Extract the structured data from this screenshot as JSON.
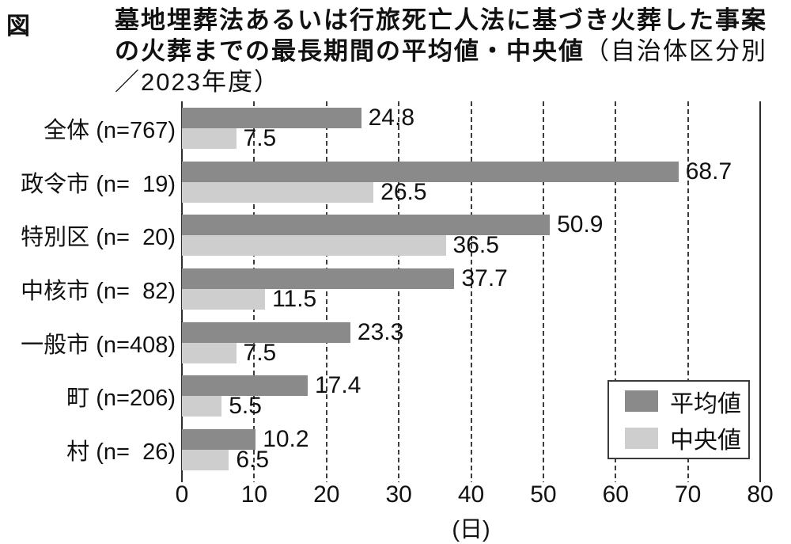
{
  "figure_label": "図",
  "title": {
    "main": "墓地埋葬法あるいは行旅死亡人法に基づき火葬した事案の火葬までの最長期間の平均値・中央値",
    "paren": "（自治体区分別／2023年度）"
  },
  "category_label_format": {
    "prefix": " (n=",
    "suffix": ")"
  },
  "chart_data": {
    "type": "bar",
    "orientation": "horizontal",
    "title": "墓地埋葬法あるいは行旅死亡人法に基づき火葬した事案の火葬までの最長期間の平均値・中央値（自治体区分別／2023年度）",
    "categories": [
      {
        "name": "全体",
        "n": 767
      },
      {
        "name": "政令市",
        "n": 19
      },
      {
        "name": "特別区",
        "n": 20
      },
      {
        "name": "中核市",
        "n": 82
      },
      {
        "name": "一般市",
        "n": 408
      },
      {
        "name": "町",
        "n": 206
      },
      {
        "name": "村",
        "n": 26
      }
    ],
    "series": [
      {
        "key": "mean",
        "name": "平均値",
        "color": "#8a8a8a",
        "values": [
          24.8,
          68.7,
          50.9,
          37.7,
          23.3,
          17.4,
          10.2
        ]
      },
      {
        "key": "median",
        "name": "中央値",
        "color": "#cecece",
        "values": [
          7.5,
          26.5,
          36.5,
          11.5,
          7.5,
          5.5,
          6.5
        ]
      }
    ],
    "xlim": [
      0,
      80
    ],
    "xticks": [
      0,
      10,
      20,
      30,
      40,
      50,
      60,
      70,
      80
    ],
    "xlabel": "(日)",
    "value_decimals": 1,
    "grid": "vertical-dashed",
    "legend_position": "inside-bottom-right"
  },
  "colors": {
    "background": "#ffffff",
    "text": "#111111",
    "grid": "#3c3c3c",
    "axis": "#2e2e2e",
    "legend_border": "#3a3a3a",
    "mean_bar": "#8a8a8a",
    "median_bar": "#cecece"
  }
}
